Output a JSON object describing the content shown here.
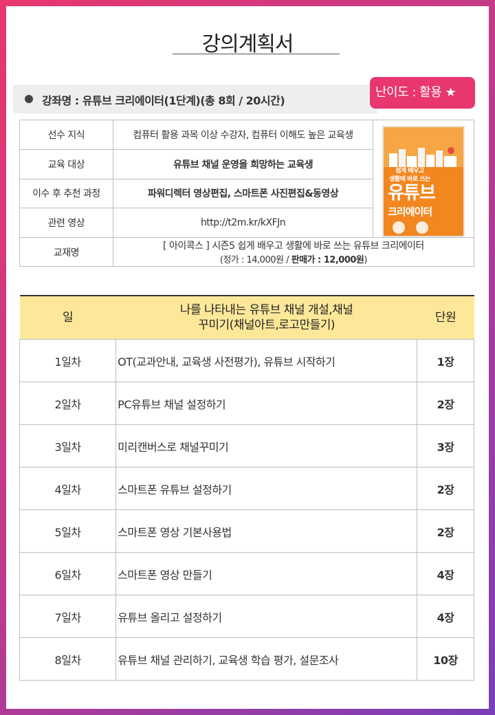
{
  "page": {
    "title": "강의계획서"
  },
  "course": {
    "name": "강좌명 : 유튜브 크리에이터(1단계)(총 8회 / 20시간)",
    "difficulty": "난이도 : 활용 ★"
  },
  "info": {
    "rows": [
      {
        "label": "선수 지식",
        "value": "컴퓨터 활용 과목 이상 수강자, 컴퓨터 이해도 높은 교육생",
        "bold": false
      },
      {
        "label": "교육 대상",
        "value": "유튜브 채널 운영을 희망하는 교육생",
        "bold": true
      },
      {
        "label": "이수 후 추천 과정",
        "value": "파워디렉터 영상편집, 스마트폰 사진편집&동영상",
        "bold": true
      },
      {
        "label": "관련 영상",
        "value": "http://t2m.kr/kXFJn",
        "bold": false
      }
    ],
    "textbook": {
      "label": "교재명",
      "title": "[ 아이콕스 ] 시즌5 쉽게 배우고 생활에 바로 쓰는 유튜브 크리에이터",
      "price_prefix": "(정가 : 14,000원 / ",
      "sale_label": "판매가 : 12,000원",
      "price_suffix": ")"
    },
    "cover": {
      "tagline1": "쉽게 배우고",
      "tagline2": "생활에 바로 쓰는",
      "title_big": "유튜브",
      "title_sub": "크리에이터"
    }
  },
  "schedule": {
    "headers": {
      "day": "일",
      "content_line1": "나를 나타내는 유튜브 채널 개설,채널",
      "content_line2": "꾸미기(채널아트,로고만들기)",
      "unit": "단원"
    },
    "rows": [
      {
        "day": "1일차",
        "content": " OT(교과안내, 교육생 사전평가), 유튜브 시작하기",
        "unit": "1장"
      },
      {
        "day": "2일차",
        "content": "PC유튜브 채널 설정하기",
        "unit": "2장"
      },
      {
        "day": "3일차",
        "content": "미리캔버스로 채널꾸미기",
        "unit": "3장"
      },
      {
        "day": "4일차",
        "content": "스마트폰 유튜브 설정하기",
        "unit": "2장"
      },
      {
        "day": "5일차",
        "content": "스마트폰 영상 기본사용법",
        "unit": "2장"
      },
      {
        "day": "6일차",
        "content": "스마트폰 영상 만들기",
        "unit": "4장"
      },
      {
        "day": "7일차",
        "content": "유튜브 올리고 설정하기",
        "unit": "4장"
      },
      {
        "day": "8일차",
        "content": "유튜브 채널 관리하기, 교육생 학습 평가, 설문조사",
        "unit": "10장"
      }
    ]
  },
  "colors": {
    "accent": "#e8376e",
    "header_bg": "#fde89a",
    "course_bar": "#eeeeee"
  }
}
